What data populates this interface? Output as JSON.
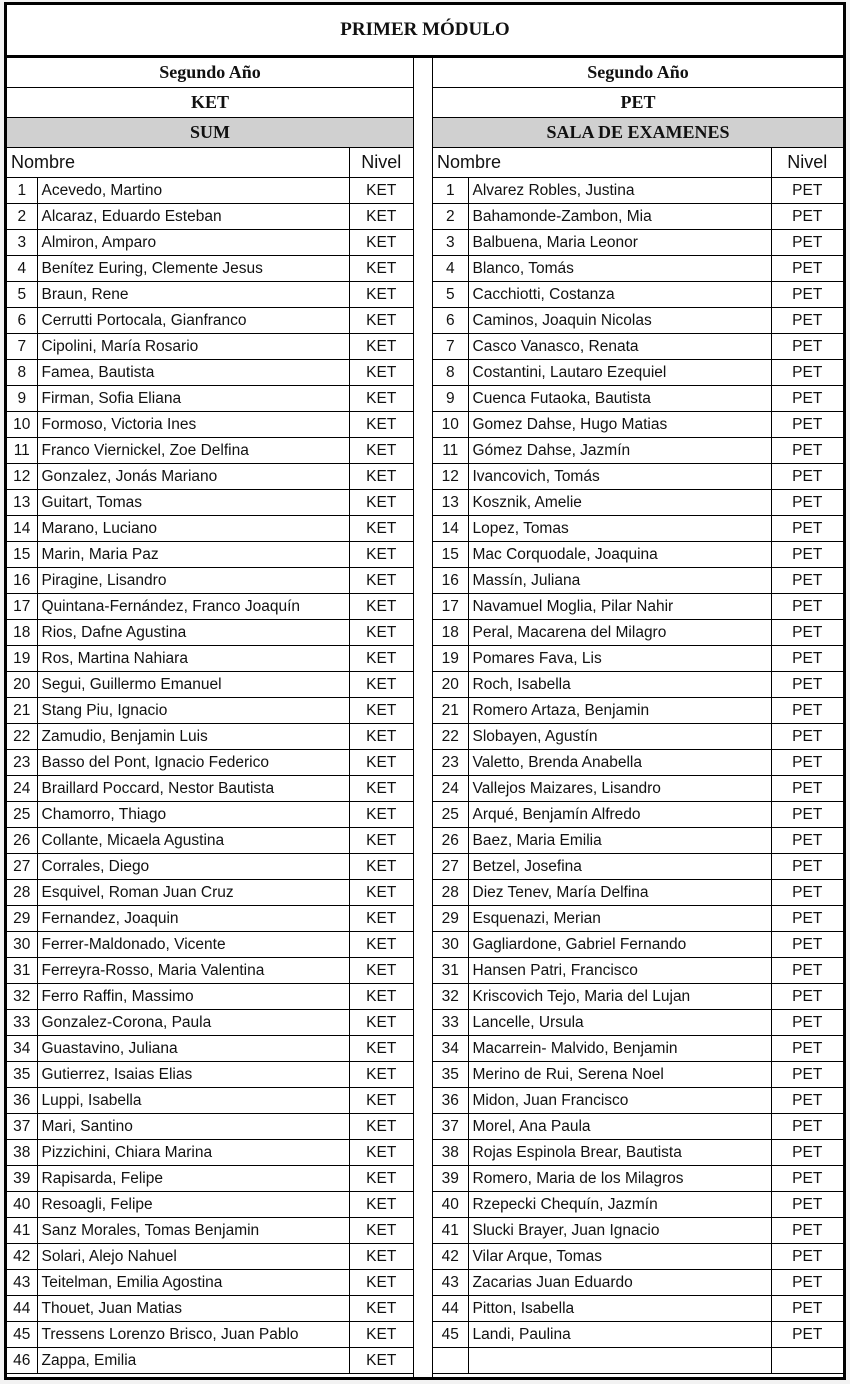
{
  "title": "PRIMER MÓDULO",
  "left": {
    "year": "Segundo Año",
    "exam": "KET",
    "room": "SUM",
    "col_name": "Nombre",
    "col_level": "Nivel",
    "rows": [
      {
        "n": "1",
        "name": "Acevedo, Martino",
        "nivel": "KET"
      },
      {
        "n": "2",
        "name": "Alcaraz, Eduardo Esteban",
        "nivel": "KET"
      },
      {
        "n": "3",
        "name": "Almiron, Amparo",
        "nivel": "KET"
      },
      {
        "n": "4",
        "name": "Benítez Euring, Clemente Jesus",
        "nivel": "KET"
      },
      {
        "n": "5",
        "name": "Braun, Rene",
        "nivel": "KET"
      },
      {
        "n": "6",
        "name": "Cerrutti Portocala, Gianfranco",
        "nivel": "KET"
      },
      {
        "n": "7",
        "name": "Cipolini, María Rosario",
        "nivel": "KET"
      },
      {
        "n": "8",
        "name": "Famea, Bautista",
        "nivel": "KET"
      },
      {
        "n": "9",
        "name": "Firman, Sofia Eliana",
        "nivel": "KET"
      },
      {
        "n": "10",
        "name": "Formoso, Victoria Ines",
        "nivel": "KET"
      },
      {
        "n": "11",
        "name": "Franco Viernickel, Zoe Delfina",
        "nivel": "KET"
      },
      {
        "n": "12",
        "name": "Gonzalez, Jonás Mariano",
        "nivel": "KET"
      },
      {
        "n": "13",
        "name": "Guitart, Tomas",
        "nivel": "KET"
      },
      {
        "n": "14",
        "name": "Marano, Luciano",
        "nivel": "KET"
      },
      {
        "n": "15",
        "name": "Marin, Maria Paz",
        "nivel": "KET"
      },
      {
        "n": "16",
        "name": "Piragine, Lisandro",
        "nivel": "KET"
      },
      {
        "n": "17",
        "name": "Quintana-Fernández, Franco Joaquín",
        "nivel": "KET"
      },
      {
        "n": "18",
        "name": "Rios, Dafne Agustina",
        "nivel": "KET"
      },
      {
        "n": "19",
        "name": "Ros, Martina Nahiara",
        "nivel": "KET"
      },
      {
        "n": "20",
        "name": "Segui, Guillermo Emanuel",
        "nivel": "KET"
      },
      {
        "n": "21",
        "name": "Stang Piu, Ignacio",
        "nivel": "KET"
      },
      {
        "n": "22",
        "name": "Zamudio, Benjamin Luis",
        "nivel": "KET"
      },
      {
        "n": "23",
        "name": "Basso del Pont, Ignacio Federico",
        "nivel": "KET"
      },
      {
        "n": "24",
        "name": "Braillard Poccard, Nestor Bautista",
        "nivel": "KET"
      },
      {
        "n": "25",
        "name": "Chamorro, Thiago",
        "nivel": "KET"
      },
      {
        "n": "26",
        "name": "Collante, Micaela Agustina",
        "nivel": "KET"
      },
      {
        "n": "27",
        "name": "Corrales, Diego",
        "nivel": "KET"
      },
      {
        "n": "28",
        "name": "Esquivel, Roman Juan Cruz",
        "nivel": "KET"
      },
      {
        "n": "29",
        "name": "Fernandez, Joaquin",
        "nivel": "KET"
      },
      {
        "n": "30",
        "name": "Ferrer-Maldonado, Vicente",
        "nivel": "KET"
      },
      {
        "n": "31",
        "name": "Ferreyra-Rosso, Maria Valentina",
        "nivel": "KET"
      },
      {
        "n": "32",
        "name": "Ferro Raffin, Massimo",
        "nivel": "KET"
      },
      {
        "n": "33",
        "name": "Gonzalez-Corona, Paula",
        "nivel": "KET"
      },
      {
        "n": "34",
        "name": "Guastavino, Juliana",
        "nivel": "KET"
      },
      {
        "n": "35",
        "name": "Gutierrez, Isaias Elias",
        "nivel": "KET"
      },
      {
        "n": "36",
        "name": "Luppi, Isabella",
        "nivel": "KET"
      },
      {
        "n": "37",
        "name": "Mari, Santino",
        "nivel": "KET"
      },
      {
        "n": "38",
        "name": "Pizzichini, Chiara Marina",
        "nivel": "KET"
      },
      {
        "n": "39",
        "name": "Rapisarda, Felipe",
        "nivel": "KET"
      },
      {
        "n": "40",
        "name": "Resoagli, Felipe",
        "nivel": "KET"
      },
      {
        "n": "41",
        "name": "Sanz Morales, Tomas Benjamin",
        "nivel": "KET"
      },
      {
        "n": "42",
        "name": "Solari, Alejo Nahuel",
        "nivel": "KET"
      },
      {
        "n": "43",
        "name": "Teitelman, Emilia Agostina",
        "nivel": "KET"
      },
      {
        "n": "44",
        "name": "Thouet, Juan Matias",
        "nivel": "KET"
      },
      {
        "n": "45",
        "name": "Tressens Lorenzo Brisco, Juan Pablo",
        "nivel": "KET"
      },
      {
        "n": "46",
        "name": "Zappa, Emilia",
        "nivel": "KET"
      }
    ]
  },
  "right": {
    "year": "Segundo Año",
    "exam": "PET",
    "room": "SALA DE EXAMENES",
    "col_name": "Nombre",
    "col_level": "Nivel",
    "rows": [
      {
        "n": "1",
        "name": "Alvarez Robles, Justina",
        "nivel": "PET"
      },
      {
        "n": "2",
        "name": "Bahamonde-Zambon, Mia",
        "nivel": "PET"
      },
      {
        "n": "3",
        "name": "Balbuena, Maria Leonor",
        "nivel": "PET"
      },
      {
        "n": "4",
        "name": "Blanco, Tomás",
        "nivel": "PET"
      },
      {
        "n": "5",
        "name": "Cacchiotti, Costanza",
        "nivel": "PET"
      },
      {
        "n": "6",
        "name": "Caminos, Joaquin Nicolas",
        "nivel": "PET"
      },
      {
        "n": "7",
        "name": "Casco Vanasco, Renata",
        "nivel": "PET"
      },
      {
        "n": "8",
        "name": "Costantini, Lautaro Ezequiel",
        "nivel": "PET"
      },
      {
        "n": "9",
        "name": "Cuenca Futaoka, Bautista",
        "nivel": "PET"
      },
      {
        "n": "10",
        "name": "Gomez Dahse, Hugo Matias",
        "nivel": "PET"
      },
      {
        "n": "11",
        "name": "Gómez Dahse, Jazmín",
        "nivel": "PET"
      },
      {
        "n": "12",
        "name": "Ivancovich, Tomás",
        "nivel": "PET"
      },
      {
        "n": "13",
        "name": "Kosznik, Amelie",
        "nivel": "PET"
      },
      {
        "n": "14",
        "name": "Lopez, Tomas",
        "nivel": "PET"
      },
      {
        "n": "15",
        "name": "Mac Corquodale, Joaquina",
        "nivel": "PET"
      },
      {
        "n": "16",
        "name": "Massín, Juliana",
        "nivel": "PET"
      },
      {
        "n": "17",
        "name": "Navamuel Moglia, Pilar Nahir",
        "nivel": "PET"
      },
      {
        "n": "18",
        "name": "Peral, Macarena del Milagro",
        "nivel": "PET"
      },
      {
        "n": "19",
        "name": "Pomares Fava, Lis",
        "nivel": "PET"
      },
      {
        "n": "20",
        "name": "Roch, Isabella",
        "nivel": "PET"
      },
      {
        "n": "21",
        "name": "Romero Artaza, Benjamin",
        "nivel": "PET"
      },
      {
        "n": "22",
        "name": "Slobayen, Agustín",
        "nivel": "PET"
      },
      {
        "n": "23",
        "name": "Valetto, Brenda Anabella",
        "nivel": "PET"
      },
      {
        "n": "24",
        "name": "Vallejos Maizares, Lisandro",
        "nivel": "PET"
      },
      {
        "n": "25",
        "name": "Arqué, Benjamín Alfredo",
        "nivel": "PET"
      },
      {
        "n": "26",
        "name": "Baez, Maria Emilia",
        "nivel": "PET"
      },
      {
        "n": "27",
        "name": "Betzel, Josefina",
        "nivel": "PET"
      },
      {
        "n": "28",
        "name": "Diez Tenev, María Delfina",
        "nivel": "PET"
      },
      {
        "n": "29",
        "name": "Esquenazi, Merian",
        "nivel": "PET"
      },
      {
        "n": "30",
        "name": "Gagliardone, Gabriel Fernando",
        "nivel": "PET"
      },
      {
        "n": "31",
        "name": "Hansen Patri, Francisco",
        "nivel": "PET"
      },
      {
        "n": "32",
        "name": "Kriscovich Tejo, Maria del Lujan",
        "nivel": "PET"
      },
      {
        "n": "33",
        "name": "Lancelle, Ursula",
        "nivel": "PET"
      },
      {
        "n": "34",
        "name": "Macarrein- Malvido, Benjamin",
        "nivel": "PET"
      },
      {
        "n": "35",
        "name": "Merino de Rui, Serena Noel",
        "nivel": "PET"
      },
      {
        "n": "36",
        "name": "Midon, Juan Francisco",
        "nivel": "PET"
      },
      {
        "n": "37",
        "name": "Morel, Ana Paula",
        "nivel": "PET"
      },
      {
        "n": "38",
        "name": "Rojas Espinola Brear, Bautista",
        "nivel": "PET"
      },
      {
        "n": "39",
        "name": "Romero, Maria de los Milagros",
        "nivel": "PET"
      },
      {
        "n": "40",
        "name": "Rzepecki Chequín, Jazmín",
        "nivel": "PET"
      },
      {
        "n": "41",
        "name": "Slucki Brayer, Juan Ignacio",
        "nivel": "PET"
      },
      {
        "n": "42",
        "name": "Vilar Arque, Tomas",
        "nivel": "PET"
      },
      {
        "n": "43",
        "name": "Zacarias Juan Eduardo",
        "nivel": "PET"
      },
      {
        "n": "44",
        "name": "Pitton, Isabella",
        "nivel": "PET"
      },
      {
        "n": "45",
        "name": "Landi, Paulina",
        "nivel": "PET"
      },
      {
        "n": "",
        "name": "",
        "nivel": ""
      }
    ]
  }
}
